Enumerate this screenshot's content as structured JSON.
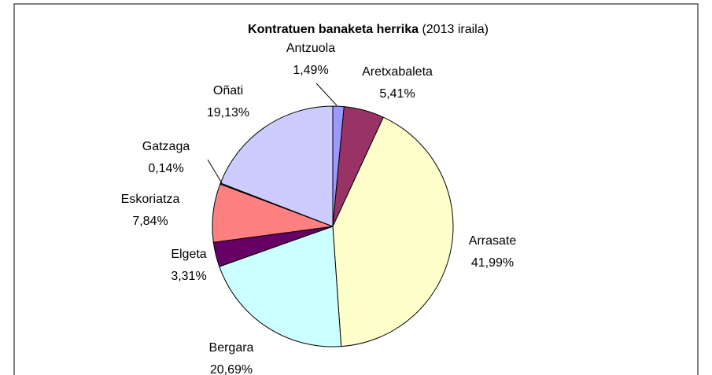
{
  "chart_data": {
    "type": "pie",
    "title": "Kontratuen banaketa herrika",
    "subtitle": "(2013 iraila)",
    "categories": [
      "Antzuola",
      "Aretxabaleta",
      "Arrasate",
      "Bergara",
      "Elgeta",
      "Eskoriatza",
      "Gatzaga",
      "Oñati"
    ],
    "values": [
      1.49,
      5.41,
      41.99,
      20.69,
      3.31,
      7.84,
      0.14,
      19.13
    ],
    "value_labels": [
      "1,49%",
      "5,41%",
      "41,99%",
      "20,69%",
      "3,31%",
      "7,84%",
      "0,14%",
      "19,13%"
    ],
    "colors": [
      "#9999ff",
      "#993366",
      "#ffffcc",
      "#ccffff",
      "#660066",
      "#ff8080",
      "#0066cc",
      "#ccccff"
    ]
  }
}
